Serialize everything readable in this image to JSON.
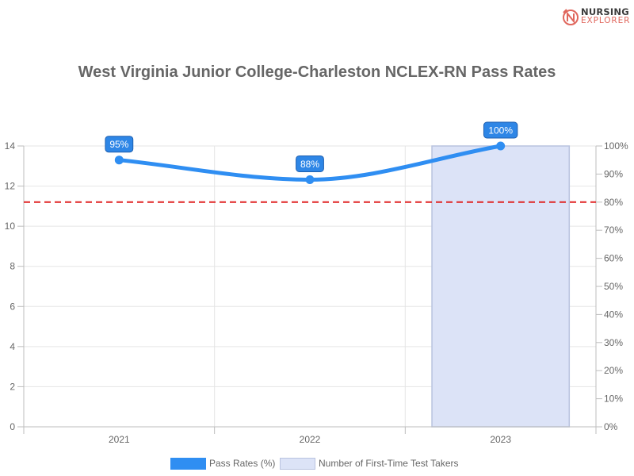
{
  "brand": {
    "line1": "NURSING",
    "line2": "EXPLORER"
  },
  "colors": {
    "line": "#2f8ef2",
    "bar_fill": "#dce3f7",
    "bar_border": "#b9c3df",
    "threshold": "#e02424",
    "label_bg": "#2e86e6"
  },
  "chart_data": {
    "type": "bar+line",
    "title": "West Virginia Junior College-Charleston NCLEX-RN Pass Rates",
    "categories": [
      "2021",
      "2022",
      "2023"
    ],
    "series": [
      {
        "name": "Pass Rates (%)",
        "type": "line",
        "axis": "right",
        "values": [
          95,
          88,
          100
        ],
        "labels": [
          "95%",
          "88%",
          "100%"
        ]
      },
      {
        "name": "Number of First-Time Test Takers",
        "type": "bar",
        "axis": "left",
        "values": [
          null,
          null,
          14
        ]
      }
    ],
    "left_axis": {
      "min": 0,
      "max": 14,
      "ticks": [
        "0",
        "2",
        "4",
        "6",
        "8",
        "10",
        "12",
        "14"
      ]
    },
    "right_axis": {
      "min": 0,
      "max": 100,
      "ticks": [
        "0%",
        "10%",
        "20%",
        "30%",
        "40%",
        "50%",
        "60%",
        "70%",
        "80%",
        "90%",
        "100%"
      ]
    },
    "threshold": {
      "axis": "right",
      "value": 80,
      "style": "dashed"
    },
    "grid": true,
    "legend_position": "bottom"
  }
}
